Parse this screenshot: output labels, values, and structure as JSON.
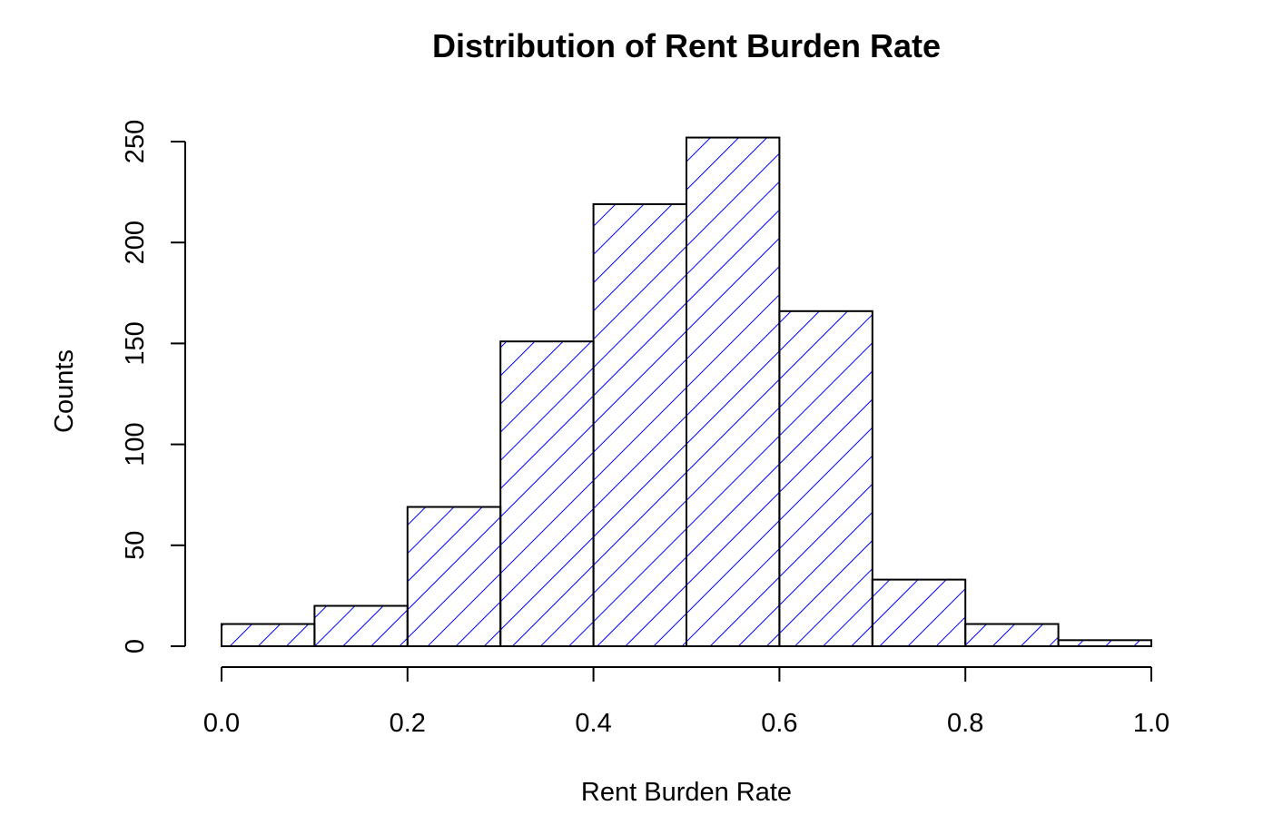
{
  "chart_data": {
    "type": "bar",
    "subtype": "histogram",
    "title": "Distribution of Rent Burden Rate",
    "xlabel": "Rent Burden Rate",
    "ylabel": "Counts",
    "bin_edges": [
      0.0,
      0.1,
      0.2,
      0.3,
      0.4,
      0.5,
      0.6,
      0.7,
      0.8,
      0.9,
      1.0
    ],
    "values": [
      11,
      20,
      69,
      151,
      219,
      252,
      166,
      33,
      11,
      3
    ],
    "xlim": [
      0.0,
      1.0
    ],
    "ylim": [
      0,
      250
    ],
    "x_ticks": [
      0.0,
      0.2,
      0.4,
      0.6,
      0.8,
      1.0
    ],
    "x_tick_labels": [
      "0.0",
      "0.2",
      "0.4",
      "0.6",
      "0.8",
      "1.0"
    ],
    "y_ticks": [
      0,
      50,
      100,
      150,
      200,
      250
    ],
    "y_tick_labels": [
      "0",
      "50",
      "100",
      "150",
      "200",
      "250"
    ],
    "fill": "hatched",
    "hatch_color": "#0000ff",
    "border_color": "#000000",
    "grid": false
  }
}
